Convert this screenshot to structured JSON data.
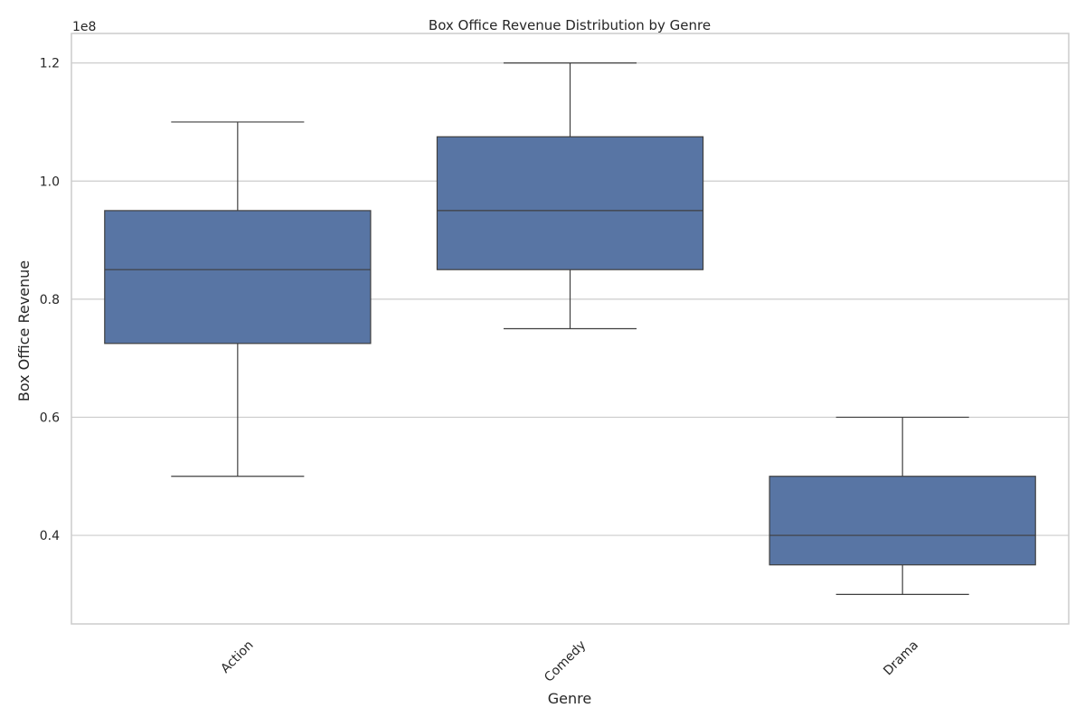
{
  "chart_data": {
    "type": "box",
    "title": "Box Office Revenue Distribution by Genre",
    "xlabel": "Genre",
    "ylabel": "Box Office Revenue",
    "y_offset_label": "1e8",
    "ylim": [
      25000000,
      125000000
    ],
    "yticks": [
      40000000,
      60000000,
      80000000,
      100000000,
      120000000
    ],
    "ytick_labels": [
      "0.4",
      "0.6",
      "0.8",
      "1.0",
      "1.2"
    ],
    "categories": [
      "Action",
      "Comedy",
      "Drama"
    ],
    "boxes": [
      {
        "category": "Action",
        "whisker_low": 50000000,
        "q1": 72500000,
        "median": 85000000,
        "q3": 95000000,
        "whisker_high": 110000000
      },
      {
        "category": "Comedy",
        "whisker_low": 75000000,
        "q1": 85000000,
        "median": 95000000,
        "q3": 107500000,
        "whisker_high": 120000000
      },
      {
        "category": "Drama",
        "whisker_low": 30000000,
        "q1": 35000000,
        "median": 40000000,
        "q3": 50000000,
        "whisker_high": 60000000
      }
    ],
    "box_color": "#5875a4",
    "line_color": "#3f3f3f",
    "grid": true,
    "grid_axis": "y",
    "grid_color": "#cccccc",
    "spine_color": "#cccccc",
    "xtick_rotation_deg": 45
  }
}
